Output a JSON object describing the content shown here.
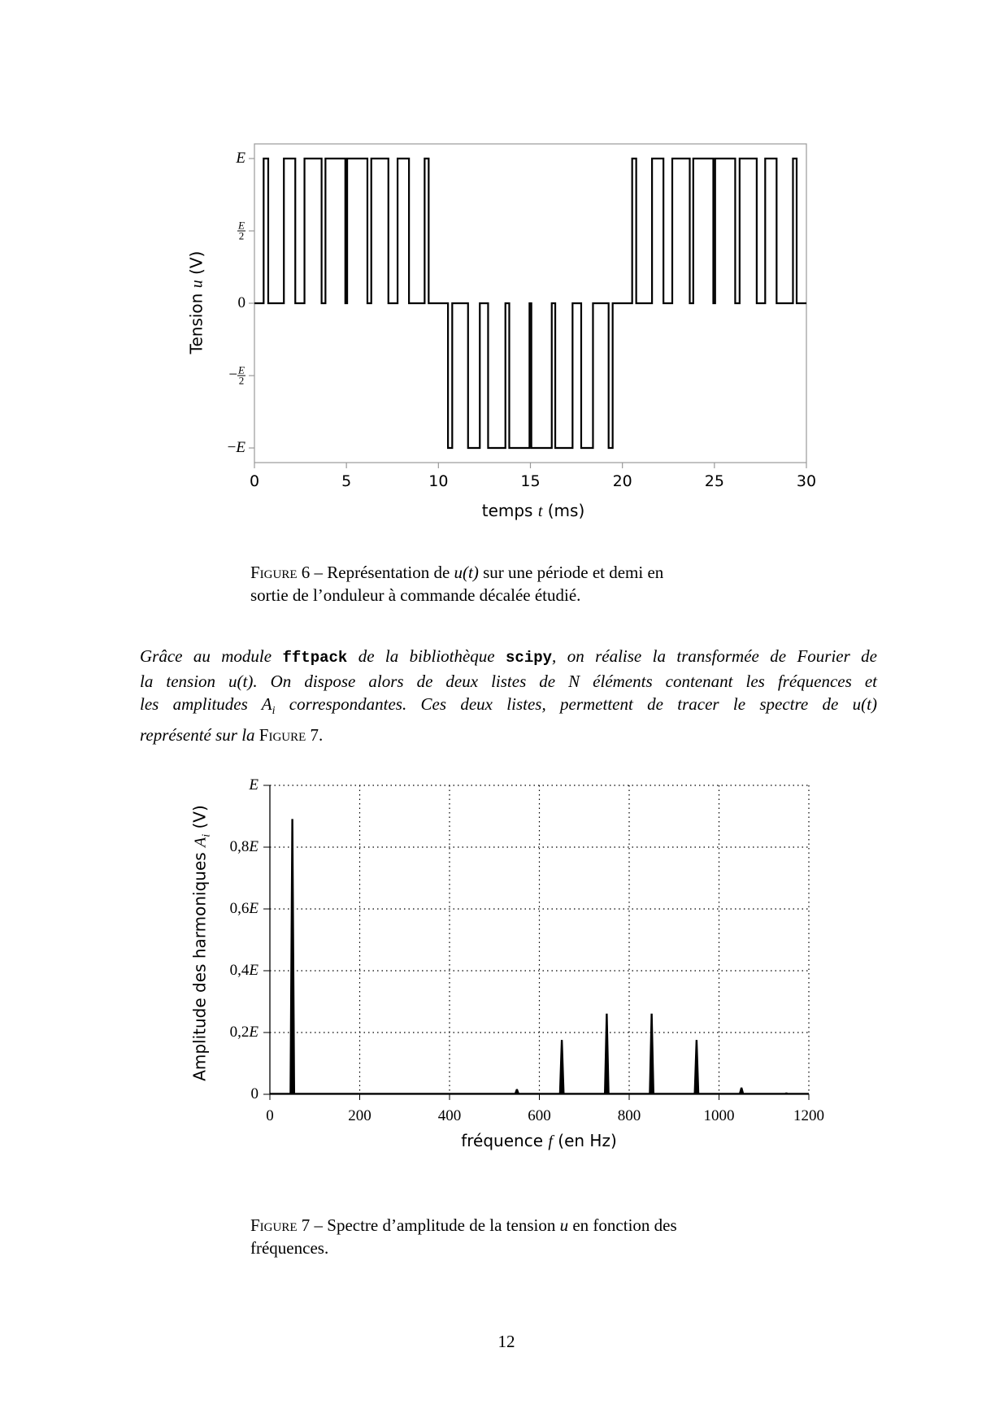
{
  "figure6": {
    "chart_data": {
      "type": "line",
      "xlabel": {
        "pre": "temps ",
        "var": "t",
        "post": " (ms)"
      },
      "ylabel": {
        "pre": "Tension ",
        "var": "u",
        "post": " (V)"
      },
      "xlim": [
        0,
        30
      ],
      "ylim_units_of_E": [
        -1.1,
        1.1
      ],
      "x_ticks": [
        {
          "value": 0,
          "label": "0"
        },
        {
          "value": 5,
          "label": "5"
        },
        {
          "value": 10,
          "label": "10"
        },
        {
          "value": 15,
          "label": "15"
        },
        {
          "value": 20,
          "label": "20"
        },
        {
          "value": 25,
          "label": "25"
        },
        {
          "value": 30,
          "label": "30"
        }
      ],
      "y_ticks": [
        {
          "value": 1,
          "sign": "",
          "label": "E"
        },
        {
          "value": 0.5,
          "sign": "",
          "num": "E",
          "den": "2"
        },
        {
          "value": 0,
          "sign": "",
          "label": "0"
        },
        {
          "value": -0.5,
          "sign": "−",
          "num": "E",
          "den": "2"
        },
        {
          "value": -1,
          "sign": "−",
          "label": "E"
        }
      ],
      "grid": false,
      "pulses_ms": [
        [
          0.5,
          0.75,
          1
        ],
        [
          1.6,
          2.22,
          1
        ],
        [
          2.72,
          3.65,
          1
        ],
        [
          3.86,
          4.94,
          1
        ],
        [
          5.04,
          6.14,
          1
        ],
        [
          6.35,
          7.28,
          1
        ],
        [
          7.78,
          8.4,
          1
        ],
        [
          9.25,
          9.47,
          1
        ],
        [
          10.52,
          10.75,
          -1
        ],
        [
          11.61,
          12.25,
          -1
        ],
        [
          12.7,
          13.64,
          -1
        ],
        [
          13.85,
          14.95,
          -1
        ],
        [
          15.05,
          16.16,
          -1
        ],
        [
          16.35,
          17.29,
          -1
        ],
        [
          17.76,
          18.4,
          -1
        ],
        [
          19.25,
          19.47,
          -1
        ],
        [
          20.53,
          20.75,
          1
        ],
        [
          21.61,
          22.23,
          1
        ],
        [
          22.71,
          23.66,
          1
        ],
        [
          23.85,
          24.94,
          1
        ],
        [
          25.04,
          26.13,
          1
        ],
        [
          26.37,
          27.3,
          1
        ],
        [
          27.76,
          28.38,
          1
        ],
        [
          29.27,
          29.47,
          1
        ]
      ],
      "line_color": "#000000"
    },
    "caption": {
      "label": "Figure 6",
      "text1": " – Représentation de ",
      "var": "u(t)",
      "text2": " sur une période et demi en",
      "line2": "sortie de l’onduleur à commande décalée étudié."
    }
  },
  "paragraph": {
    "l1a": "Grâce au module ",
    "l1code1": "fftpack",
    "l1b": " de la bibliothèque ",
    "l1code2": "scipy",
    "l1c": ", on réalise la transformée de Fourier de",
    "l2": "la tension u(t). On dispose alors de deux listes de N éléments contenant les fréquences et",
    "l3a": "les amplitudes A",
    "l3sub": "i",
    "l3b": " correspondantes. Ces deux listes, permettent de tracer le spectre de u(t)",
    "l4a": "représenté sur la ",
    "l4sc": "Figure 7."
  },
  "figure7": {
    "chart_data": {
      "type": "bar",
      "xlabel": {
        "pre": "fréquence ",
        "var": "f",
        "post": " (en Hz)"
      },
      "ylabel": {
        "pre": "Amplitude des harmoniques ",
        "var": "A",
        "sub": "i",
        "post": " (V)"
      },
      "xlim": [
        0,
        1200
      ],
      "ylim_units_of_E": [
        0,
        1
      ],
      "x_ticks": [
        {
          "value": 0,
          "label": "0"
        },
        {
          "value": 200,
          "label": "200"
        },
        {
          "value": 400,
          "label": "400"
        },
        {
          "value": 600,
          "label": "600"
        },
        {
          "value": 800,
          "label": "800"
        },
        {
          "value": 1000,
          "label": "1000"
        },
        {
          "value": 1200,
          "label": "1200"
        }
      ],
      "y_ticks": [
        {
          "value": 1,
          "coef": "",
          "sym": "E"
        },
        {
          "value": 0.8,
          "coef": "0,8",
          "sym": "E"
        },
        {
          "value": 0.6,
          "coef": "0,6",
          "sym": "E"
        },
        {
          "value": 0.4,
          "coef": "0,4",
          "sym": "E"
        },
        {
          "value": 0.2,
          "coef": "0,2",
          "sym": "E"
        },
        {
          "value": 0,
          "coef": "0",
          "sym": ""
        }
      ],
      "grid": true,
      "frequencies_hz": [
        50,
        150,
        350,
        550,
        650,
        750,
        850,
        950,
        1050,
        1150
      ],
      "amplitudes_units_of_E": [
        0.89,
        0.002,
        0.002,
        0.016,
        0.175,
        0.26,
        0.26,
        0.175,
        0.021,
        0.005
      ],
      "line_color": "#000000"
    },
    "caption": {
      "label": "Figure 7",
      "text1": " – Spectre d’amplitude de la tension ",
      "var": "u",
      "text2": " en fonction des",
      "line2": "fréquences."
    }
  },
  "page_number": "12"
}
